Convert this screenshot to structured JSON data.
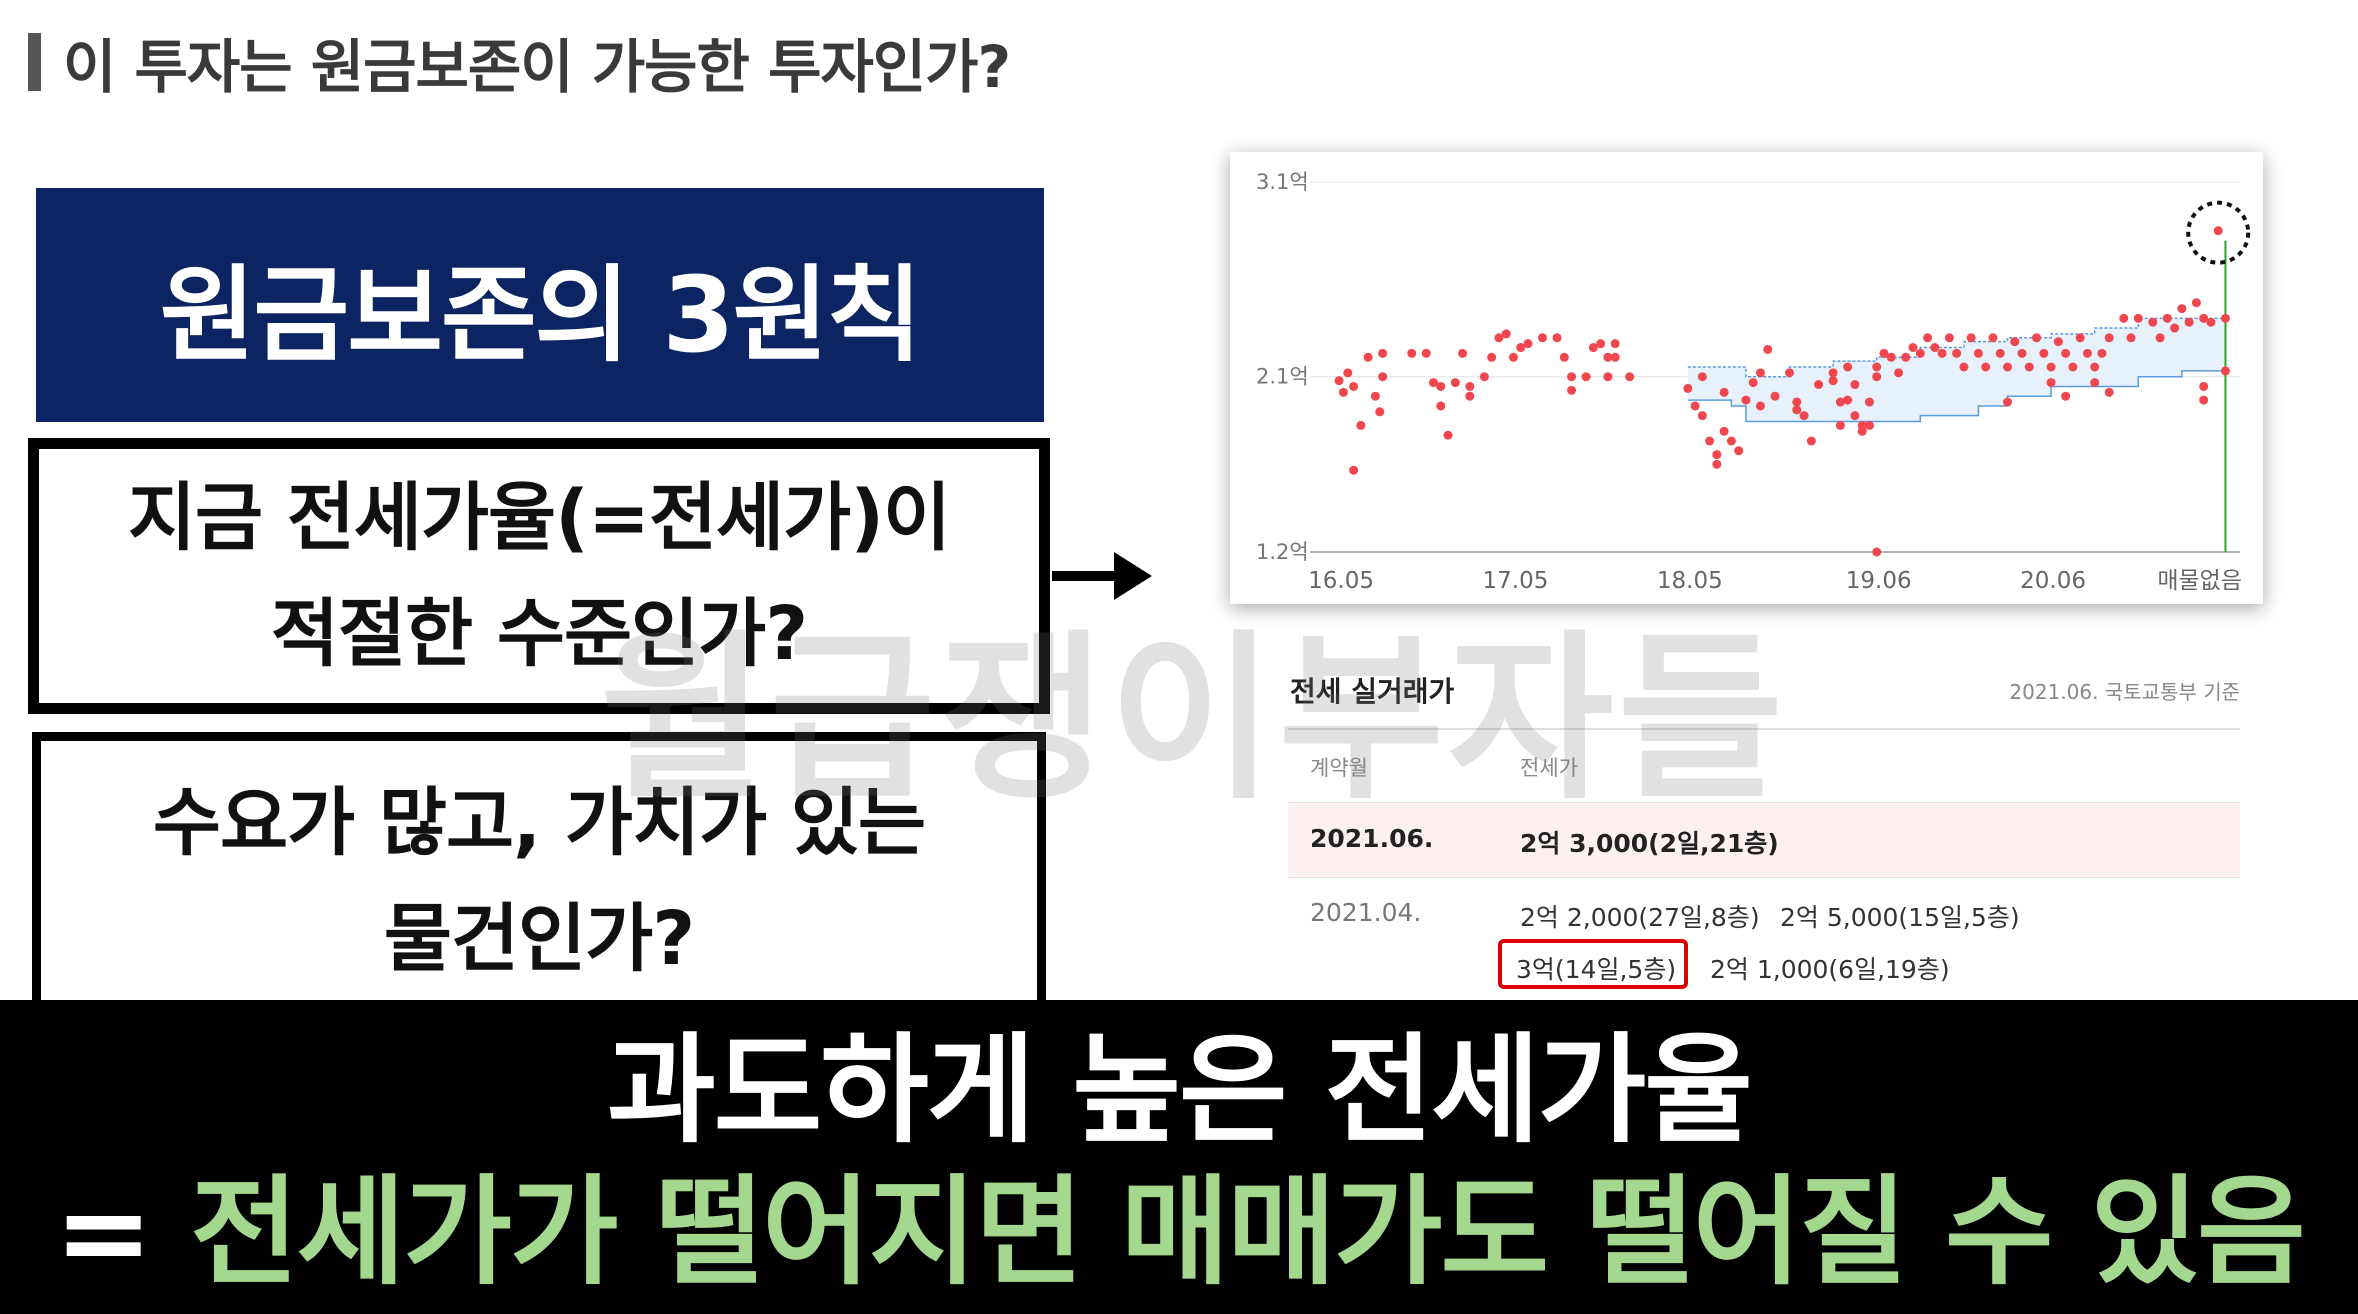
{
  "header": {
    "title": "이 투자는 원금보존이 가능한 투자인가?"
  },
  "principle": {
    "title": "원금보존의 3원칙"
  },
  "rules": [
    {
      "lines": [
        "지금 전세가율(=전세가)이",
        "적절한 수준인가?"
      ]
    },
    {
      "lines": [
        "수요가 많고, 가치가 있는",
        "물건인가?"
      ]
    }
  ],
  "watermark": "월급쟁이부자들",
  "chart_data": {
    "type": "scatter",
    "y_ticks": [
      "3.1억",
      "2.1억",
      "1.2억"
    ],
    "y_tick_values": [
      3.1,
      2.1,
      1.2
    ],
    "x_ticks": [
      "16.05",
      "17.05",
      "18.05",
      "19.06",
      "20.06",
      "매물없음"
    ],
    "x_tick_values": [
      0,
      12,
      24,
      37,
      49,
      60
    ],
    "ylim": [
      1.2,
      3.1
    ],
    "xlim": [
      -2,
      62
    ],
    "grid": true,
    "colors": {
      "points": "#f0474f",
      "band_line": "#5c9be0",
      "band_fill": "#e6f1fb",
      "marker": "#2fa02f"
    },
    "points": [
      {
        "x": 0,
        "y": 2.08
      },
      {
        "x": 0.3,
        "y": 2.02
      },
      {
        "x": 0.6,
        "y": 2.12
      },
      {
        "x": 1,
        "y": 2.05
      },
      {
        "x": 1,
        "y": 1.62
      },
      {
        "x": 1.5,
        "y": 1.85
      },
      {
        "x": 2,
        "y": 2.2
      },
      {
        "x": 2.5,
        "y": 2.0
      },
      {
        "x": 2.8,
        "y": 1.92
      },
      {
        "x": 3,
        "y": 2.22
      },
      {
        "x": 3,
        "y": 2.1
      },
      {
        "x": 5,
        "y": 2.22
      },
      {
        "x": 6,
        "y": 2.22
      },
      {
        "x": 6.5,
        "y": 2.07
      },
      {
        "x": 7,
        "y": 1.95
      },
      {
        "x": 7,
        "y": 2.05
      },
      {
        "x": 7.5,
        "y": 1.8
      },
      {
        "x": 8,
        "y": 2.07
      },
      {
        "x": 8.5,
        "y": 2.22
      },
      {
        "x": 9,
        "y": 2.05
      },
      {
        "x": 9,
        "y": 2.0
      },
      {
        "x": 10,
        "y": 2.1
      },
      {
        "x": 10.5,
        "y": 2.2
      },
      {
        "x": 11,
        "y": 2.3
      },
      {
        "x": 11.5,
        "y": 2.32
      },
      {
        "x": 12,
        "y": 2.2
      },
      {
        "x": 12.5,
        "y": 2.25
      },
      {
        "x": 13,
        "y": 2.27
      },
      {
        "x": 14,
        "y": 2.3
      },
      {
        "x": 15,
        "y": 2.3
      },
      {
        "x": 15.5,
        "y": 2.2
      },
      {
        "x": 16,
        "y": 2.1
      },
      {
        "x": 16,
        "y": 2.03
      },
      {
        "x": 17,
        "y": 2.1
      },
      {
        "x": 17.5,
        "y": 2.25
      },
      {
        "x": 18,
        "y": 2.27
      },
      {
        "x": 18.5,
        "y": 2.2
      },
      {
        "x": 18.5,
        "y": 2.1
      },
      {
        "x": 19,
        "y": 2.27
      },
      {
        "x": 19,
        "y": 2.2
      },
      {
        "x": 20,
        "y": 2.1
      },
      {
        "x": 24,
        "y": 2.04
      },
      {
        "x": 24.5,
        "y": 1.95
      },
      {
        "x": 25,
        "y": 2.1
      },
      {
        "x": 25,
        "y": 1.9
      },
      {
        "x": 25.5,
        "y": 1.77
      },
      {
        "x": 26,
        "y": 1.7
      },
      {
        "x": 26,
        "y": 1.65
      },
      {
        "x": 26.5,
        "y": 2.02
      },
      {
        "x": 26.5,
        "y": 1.82
      },
      {
        "x": 27,
        "y": 1.77
      },
      {
        "x": 27.5,
        "y": 1.72
      },
      {
        "x": 28,
        "y": 1.98
      },
      {
        "x": 28.5,
        "y": 2.07
      },
      {
        "x": 29,
        "y": 1.95
      },
      {
        "x": 29,
        "y": 2.12
      },
      {
        "x": 29.5,
        "y": 2.24
      },
      {
        "x": 30,
        "y": 2.0
      },
      {
        "x": 31,
        "y": 2.12
      },
      {
        "x": 31.5,
        "y": 1.97
      },
      {
        "x": 31.5,
        "y": 1.93
      },
      {
        "x": 32,
        "y": 1.9
      },
      {
        "x": 32.5,
        "y": 1.77
      },
      {
        "x": 33,
        "y": 2.06
      },
      {
        "x": 34,
        "y": 2.08
      },
      {
        "x": 34,
        "y": 2.12
      },
      {
        "x": 34.5,
        "y": 1.97
      },
      {
        "x": 34.5,
        "y": 1.85
      },
      {
        "x": 35,
        "y": 2.15
      },
      {
        "x": 35,
        "y": 1.98
      },
      {
        "x": 35.5,
        "y": 2.06
      },
      {
        "x": 35.5,
        "y": 1.9
      },
      {
        "x": 36,
        "y": 1.85
      },
      {
        "x": 36,
        "y": 1.82
      },
      {
        "x": 36.5,
        "y": 1.85
      },
      {
        "x": 36.5,
        "y": 1.97
      },
      {
        "x": 37,
        "y": 2.1
      },
      {
        "x": 37,
        "y": 2.15
      },
      {
        "x": 37.5,
        "y": 2.22
      },
      {
        "x": 37,
        "y": 1.2
      },
      {
        "x": 38,
        "y": 2.2
      },
      {
        "x": 38.5,
        "y": 2.12
      },
      {
        "x": 39,
        "y": 2.2
      },
      {
        "x": 39.5,
        "y": 2.25
      },
      {
        "x": 40,
        "y": 2.22
      },
      {
        "x": 40.5,
        "y": 2.3
      },
      {
        "x": 41,
        "y": 2.25
      },
      {
        "x": 41.5,
        "y": 2.22
      },
      {
        "x": 42,
        "y": 2.3
      },
      {
        "x": 42.5,
        "y": 2.22
      },
      {
        "x": 43,
        "y": 2.15
      },
      {
        "x": 43.5,
        "y": 2.3
      },
      {
        "x": 44,
        "y": 2.22
      },
      {
        "x": 44.5,
        "y": 2.15
      },
      {
        "x": 45,
        "y": 2.3
      },
      {
        "x": 45.5,
        "y": 2.22
      },
      {
        "x": 46,
        "y": 2.15
      },
      {
        "x": 46.5,
        "y": 2.28
      },
      {
        "x": 47,
        "y": 2.22
      },
      {
        "x": 47.5,
        "y": 2.15
      },
      {
        "x": 48,
        "y": 2.3
      },
      {
        "x": 48.5,
        "y": 2.22
      },
      {
        "x": 49,
        "y": 2.15
      },
      {
        "x": 49.5,
        "y": 2.28
      },
      {
        "x": 50,
        "y": 2.22
      },
      {
        "x": 50.5,
        "y": 2.15
      },
      {
        "x": 51,
        "y": 2.3
      },
      {
        "x": 51.5,
        "y": 2.22
      },
      {
        "x": 52,
        "y": 2.15
      },
      {
        "x": 52.5,
        "y": 2.22
      },
      {
        "x": 53,
        "y": 2.3
      },
      {
        "x": 46,
        "y": 1.97
      },
      {
        "x": 49,
        "y": 2.07
      },
      {
        "x": 50,
        "y": 2.0
      },
      {
        "x": 52,
        "y": 2.07
      },
      {
        "x": 53,
        "y": 2.02
      },
      {
        "x": 54,
        "y": 2.4
      },
      {
        "x": 54.5,
        "y": 2.3
      },
      {
        "x": 55,
        "y": 2.4
      },
      {
        "x": 56,
        "y": 2.38
      },
      {
        "x": 56.5,
        "y": 2.3
      },
      {
        "x": 57,
        "y": 2.4
      },
      {
        "x": 57.5,
        "y": 2.35
      },
      {
        "x": 58,
        "y": 2.45
      },
      {
        "x": 58.5,
        "y": 2.38
      },
      {
        "x": 59,
        "y": 2.48
      },
      {
        "x": 59.5,
        "y": 2.4
      },
      {
        "x": 60,
        "y": 2.38
      },
      {
        "x": 61,
        "y": 2.4
      },
      {
        "x": 61,
        "y": 2.13
      },
      {
        "x": 59.5,
        "y": 2.05
      },
      {
        "x": 59.5,
        "y": 1.98
      },
      {
        "x": 60.5,
        "y": 2.85
      }
    ],
    "band_upper": [
      [
        24,
        2.15
      ],
      [
        27,
        2.15
      ],
      [
        28,
        2.1
      ],
      [
        30,
        2.1
      ],
      [
        31,
        2.15
      ],
      [
        34,
        2.18
      ],
      [
        37,
        2.2
      ],
      [
        40,
        2.25
      ],
      [
        43,
        2.28
      ],
      [
        46,
        2.3
      ],
      [
        49,
        2.32
      ],
      [
        52,
        2.35
      ],
      [
        55,
        2.4
      ],
      [
        58,
        2.4
      ],
      [
        61,
        2.4
      ]
    ],
    "band_lower": [
      [
        24,
        1.98
      ],
      [
        27,
        1.95
      ],
      [
        28,
        1.87
      ],
      [
        31,
        1.87
      ],
      [
        34,
        1.87
      ],
      [
        37,
        1.87
      ],
      [
        40,
        1.9
      ],
      [
        42,
        1.9
      ],
      [
        44,
        1.95
      ],
      [
        46,
        2.0
      ],
      [
        49,
        2.05
      ],
      [
        52,
        2.05
      ],
      [
        55,
        2.1
      ],
      [
        58,
        2.13
      ],
      [
        61,
        2.13
      ]
    ],
    "current_marker_x": 61,
    "highlight_point": {
      "x": 60.5,
      "y": 2.85
    }
  },
  "table": {
    "heading": "전세 실거래가",
    "source": "2021.06. 국토교통부 기준",
    "col_month": "계약월",
    "col_price": "전세가",
    "rows": [
      {
        "month": "2021.06.",
        "deals": [
          "2억 3,000(2일,21층)"
        ]
      },
      {
        "month": "2021.04.",
        "deals": [
          "2억 2,000(27일,8층)",
          "2억 5,000(15일,5층)",
          "3억(14일,5층)",
          "2억 1,000(6일,19층)"
        ]
      }
    ]
  },
  "banner": {
    "line1": "과도하게 높은 전세가율",
    "line2_prefix": "=",
    "line2_highlight": "전세가가 떨어지면 매매가도 떨어질 수 있음"
  }
}
